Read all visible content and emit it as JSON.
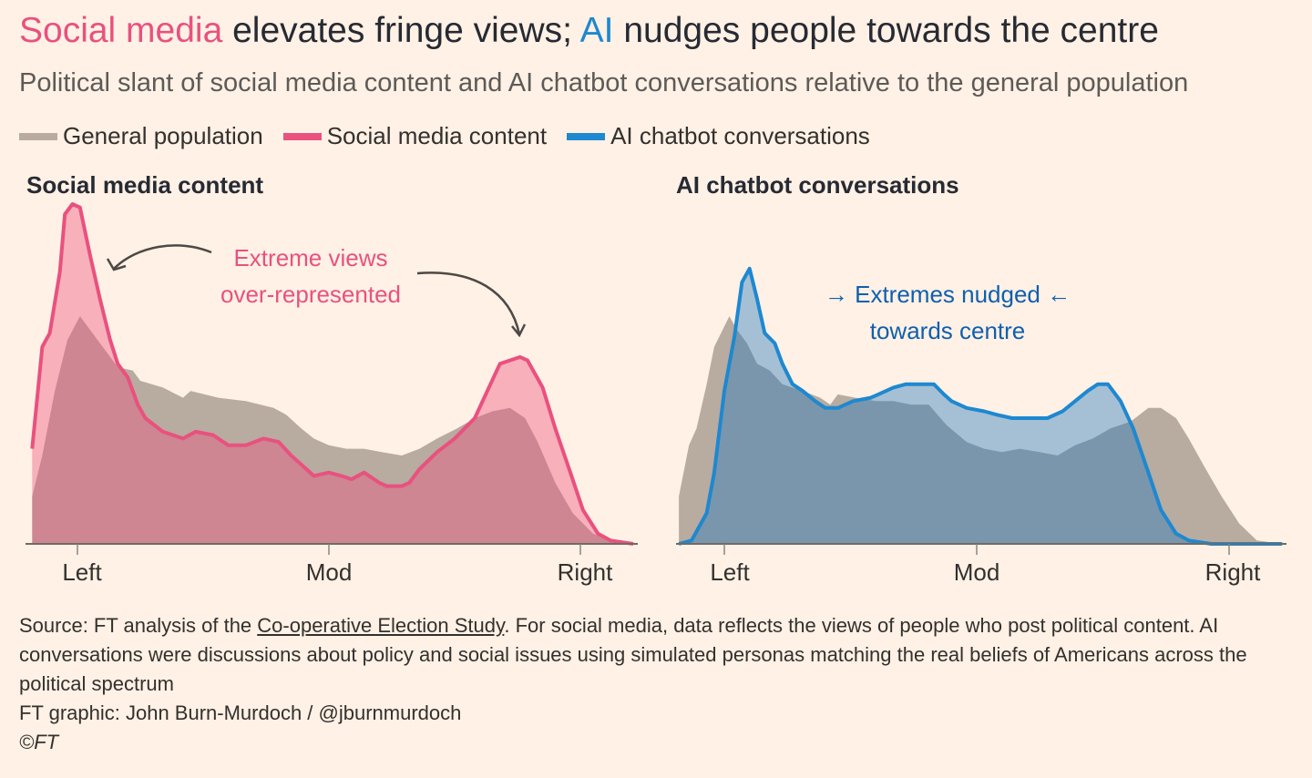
{
  "title": {
    "part1": "Social media",
    "part2": " elevates fringe views; ",
    "part3": "AI",
    "part4": " nudges people towards the centre"
  },
  "subtitle": "Political slant of social media content and AI chatbot conversations relative to the general population",
  "legend": [
    {
      "label": "General population",
      "color": "#b8aba0"
    },
    {
      "label": "Social media content",
      "color": "#e9517f"
    },
    {
      "label": "AI chatbot conversations",
      "color": "#1e88d0"
    }
  ],
  "annotations": {
    "social_line1": "Extreme views",
    "social_line2": "over-represented",
    "ai_line1": "→ Extremes nudged ←",
    "ai_line2": "towards centre"
  },
  "source": {
    "prefix": "Source: FT analysis of the ",
    "link": "Co-operative Election Study",
    "rest": ". For social media, data reflects the views of people who post political content. AI conversations were discussions about policy and social issues using simulated personas matching the real beliefs of Americans across the political spectrum",
    "credit": "FT graphic: John Burn-Murdoch / @jburnmurdoch",
    "copyright": "©FT"
  },
  "colors": {
    "background": "#fff1e5",
    "general": "#b8aba0",
    "social": "#e9517f",
    "ai": "#1e88d0",
    "ai_text": "#0f5fae"
  },
  "chart_data": [
    {
      "type": "area",
      "title": "Social media content",
      "x_ticks": [
        {
          "value": -1,
          "label": "Left"
        },
        {
          "value": 0,
          "label": "Mod"
        },
        {
          "value": 1,
          "label": "Right"
        }
      ],
      "xlim": [
        -1.2,
        1.2
      ],
      "ylim": [
        0,
        1
      ],
      "y_axis_shown": false,
      "series": [
        {
          "name": "General population",
          "x": [
            -1.18,
            -1.14,
            -1.09,
            -1.04,
            -0.99,
            -0.95,
            -0.89,
            -0.84,
            -0.78,
            -0.75,
            -0.66,
            -0.58,
            -0.55,
            -0.44,
            -0.33,
            -0.22,
            -0.17,
            -0.11,
            -0.06,
            0.0,
            0.07,
            0.14,
            0.21,
            0.29,
            0.36,
            0.43,
            0.51,
            0.58,
            0.65,
            0.72,
            0.78,
            0.83,
            0.9,
            0.97,
            1.05,
            1.12,
            1.21
          ],
          "y": [
            0.14,
            0.26,
            0.45,
            0.6,
            0.67,
            0.63,
            0.57,
            0.52,
            0.51,
            0.48,
            0.46,
            0.43,
            0.45,
            0.43,
            0.42,
            0.4,
            0.38,
            0.34,
            0.31,
            0.29,
            0.28,
            0.28,
            0.27,
            0.26,
            0.28,
            0.31,
            0.34,
            0.37,
            0.39,
            0.4,
            0.37,
            0.3,
            0.18,
            0.09,
            0.03,
            0.01,
            0.0
          ]
        },
        {
          "name": "Social media content",
          "x": [
            -1.18,
            -1.14,
            -1.11,
            -1.07,
            -1.05,
            -1.02,
            -0.99,
            -0.95,
            -0.91,
            -0.87,
            -0.84,
            -0.8,
            -0.76,
            -0.73,
            -0.66,
            -0.58,
            -0.53,
            -0.46,
            -0.4,
            -0.33,
            -0.26,
            -0.2,
            -0.15,
            -0.09,
            -0.06,
            0.0,
            0.05,
            0.09,
            0.14,
            0.2,
            0.23,
            0.29,
            0.32,
            0.36,
            0.43,
            0.5,
            0.58,
            0.63,
            0.68,
            0.76,
            0.79,
            0.85,
            0.9,
            0.96,
            1.01,
            1.07,
            1.12,
            1.21
          ],
          "y": [
            0.28,
            0.58,
            0.62,
            0.8,
            0.97,
            1.0,
            0.99,
            0.85,
            0.72,
            0.6,
            0.53,
            0.49,
            0.41,
            0.37,
            0.33,
            0.31,
            0.33,
            0.32,
            0.29,
            0.29,
            0.31,
            0.3,
            0.26,
            0.22,
            0.2,
            0.21,
            0.2,
            0.19,
            0.21,
            0.18,
            0.17,
            0.17,
            0.18,
            0.22,
            0.27,
            0.31,
            0.37,
            0.45,
            0.53,
            0.55,
            0.54,
            0.46,
            0.34,
            0.21,
            0.1,
            0.03,
            0.01,
            0.0
          ]
        }
      ]
    },
    {
      "type": "area",
      "title": "AI chatbot conversations",
      "x_ticks": [
        {
          "value": -1,
          "label": "Left"
        },
        {
          "value": 0,
          "label": "Mod"
        },
        {
          "value": 1,
          "label": "Right"
        }
      ],
      "xlim": [
        -1.2,
        1.2
      ],
      "ylim": [
        0,
        1
      ],
      "y_axis_shown": false,
      "series": [
        {
          "name": "General population",
          "x": [
            -1.18,
            -1.14,
            -1.11,
            -1.07,
            -1.04,
            -0.98,
            -0.95,
            -0.91,
            -0.87,
            -0.82,
            -0.77,
            -0.69,
            -0.62,
            -0.58,
            -0.55,
            -0.48,
            -0.4,
            -0.33,
            -0.26,
            -0.19,
            -0.12,
            -0.04,
            0.03,
            0.1,
            0.17,
            0.25,
            0.32,
            0.39,
            0.46,
            0.53,
            0.61,
            0.68,
            0.73,
            0.79,
            0.84,
            0.9,
            0.97,
            1.04,
            1.11,
            1.21
          ],
          "y": [
            0.14,
            0.29,
            0.34,
            0.47,
            0.58,
            0.67,
            0.63,
            0.59,
            0.53,
            0.51,
            0.47,
            0.45,
            0.43,
            0.41,
            0.44,
            0.43,
            0.42,
            0.42,
            0.41,
            0.41,
            0.35,
            0.3,
            0.28,
            0.27,
            0.28,
            0.27,
            0.26,
            0.29,
            0.31,
            0.34,
            0.36,
            0.4,
            0.4,
            0.37,
            0.31,
            0.23,
            0.14,
            0.06,
            0.01,
            0.0
          ]
        },
        {
          "name": "AI chatbot conversations",
          "x": [
            -1.18,
            -1.13,
            -1.07,
            -1.04,
            -1.0,
            -0.96,
            -0.93,
            -0.9,
            -0.87,
            -0.84,
            -0.8,
            -0.77,
            -0.73,
            -0.69,
            -0.64,
            -0.6,
            -0.55,
            -0.49,
            -0.42,
            -0.39,
            -0.33,
            -0.28,
            -0.22,
            -0.17,
            -0.13,
            -0.1,
            -0.04,
            0.03,
            0.08,
            0.14,
            0.21,
            0.28,
            0.34,
            0.39,
            0.44,
            0.48,
            0.52,
            0.57,
            0.62,
            0.68,
            0.73,
            0.79,
            0.84,
            0.93,
            1.21
          ],
          "y": [
            0.0,
            0.01,
            0.09,
            0.21,
            0.45,
            0.61,
            0.77,
            0.81,
            0.72,
            0.62,
            0.59,
            0.53,
            0.47,
            0.45,
            0.42,
            0.4,
            0.4,
            0.42,
            0.43,
            0.44,
            0.46,
            0.47,
            0.47,
            0.47,
            0.44,
            0.42,
            0.4,
            0.39,
            0.38,
            0.37,
            0.37,
            0.37,
            0.39,
            0.42,
            0.45,
            0.47,
            0.47,
            0.42,
            0.34,
            0.21,
            0.1,
            0.03,
            0.01,
            0.0,
            0.0
          ]
        }
      ]
    }
  ]
}
